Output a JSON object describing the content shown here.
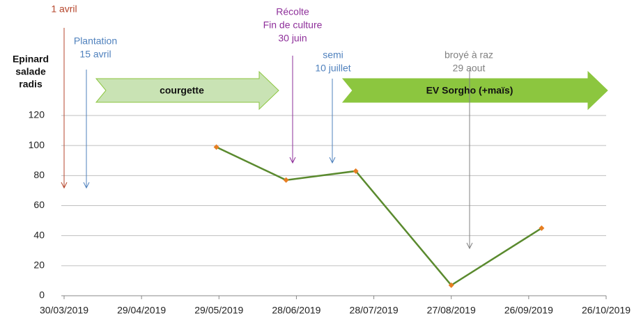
{
  "chart_data": {
    "type": "line",
    "x": [
      "2019-05-28",
      "2019-06-24",
      "2019-07-21",
      "2019-08-27",
      "2019-10-01"
    ],
    "series": [
      {
        "color": "#5a8a2e",
        "marker_color": "#e67e22",
        "values": [
          99,
          77,
          83,
          7,
          45
        ]
      }
    ],
    "ylim": [
      0,
      120
    ],
    "yticks": [
      0,
      20,
      40,
      60,
      80,
      100,
      120
    ],
    "grid": true,
    "xlim": [
      "2019-03-30",
      "2019-10-26"
    ],
    "xticks": [
      {
        "value": "2019-03-30",
        "label": "30/03/2019"
      },
      {
        "value": "2019-04-29",
        "label": "29/04/2019"
      },
      {
        "value": "2019-05-29",
        "label": "29/05/2019"
      },
      {
        "value": "2019-06-28",
        "label": "28/06/2019"
      },
      {
        "value": "2019-07-28",
        "label": "28/07/2019"
      },
      {
        "value": "2019-08-27",
        "label": "27/08/2019"
      },
      {
        "value": "2019-09-26",
        "label": "26/09/2019"
      },
      {
        "value": "2019-10-26",
        "label": "26/10/2019"
      }
    ],
    "side_label": [
      "Epinard",
      "salade",
      "radis"
    ],
    "annotations": [
      {
        "lines": [
          "1 avril"
        ],
        "color": "#b5452b"
      },
      {
        "lines": [
          "Plantation",
          "15 avril"
        ],
        "color": "#4f81bd"
      },
      {
        "lines": [
          "Récolte",
          "Fin de culture",
          "30 juin"
        ],
        "color": "#8e2f9a"
      },
      {
        "lines": [
          "semi",
          "10 juillet"
        ],
        "color": "#4f81bd"
      },
      {
        "lines": [
          "broyé à raz",
          "29 aout"
        ],
        "color": "#808080"
      }
    ],
    "phases": [
      {
        "label": "courgette",
        "color": "#c9e3b4"
      },
      {
        "label": "EV Sorgho (+maïs)",
        "color": "#8cc63f"
      }
    ]
  }
}
